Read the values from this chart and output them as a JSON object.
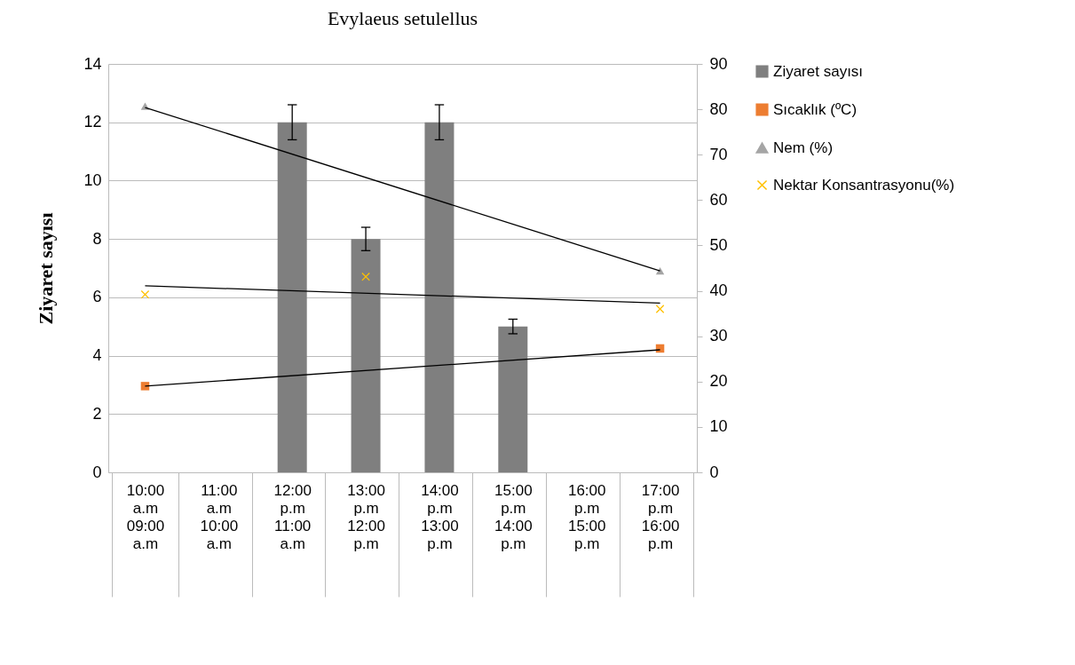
{
  "chart_data": {
    "type": "bar",
    "title": "Evylaeus setulellus",
    "ylabel": "Ziyaret sayısı",
    "categories": [
      "10:00\na.m\n\n09:00\na.m",
      "11:00\na.m\n\n10:00\na.m",
      "12:00\np.m\n\n11:00\na.m",
      "13:00\np.m\n\n12:00\np.m",
      "14:00\np.m\n\n13:00\np.m",
      "15:00\np.m\n\n14:00\np.m",
      "16:00\np.m\n\n15:00\np.m",
      "17:00\np.m\n\n16:00\np.m"
    ],
    "ylim": [
      0,
      14
    ],
    "yticks": [
      0,
      2,
      4,
      6,
      8,
      10,
      12,
      14
    ],
    "y2lim": [
      0,
      90
    ],
    "y2ticks": [
      0,
      10,
      20,
      30,
      40,
      50,
      60,
      70,
      80,
      90
    ],
    "grid": "y",
    "legend": "top right",
    "series": [
      {
        "name": "Ziyaret sayısı",
        "color": "#7f7f7f",
        "values": [
          null,
          null,
          12,
          8,
          12,
          5,
          null,
          null
        ],
        "errors": [
          null,
          null,
          0.6,
          0.4,
          0.6,
          0.25,
          null,
          null
        ]
      },
      {
        "name": "Sıcaklık (ºC)",
        "type": "scatter",
        "axis": "y2",
        "color": "#ed7d31",
        "marker": "square",
        "values": [
          19,
          null,
          null,
          null,
          null,
          null,
          null,
          27.3
        ]
      },
      {
        "name": "Nem (%)",
        "type": "scatter",
        "axis": "y2",
        "color": "#a5a5a5",
        "marker": "triangle",
        "values": [
          80.7,
          null,
          null,
          null,
          null,
          null,
          null,
          44.4
        ]
      },
      {
        "name": "Nektar Konsantrasyonu(%)",
        "type": "scatter",
        "axis": "y2",
        "color": "#ffc000",
        "marker": "cross",
        "values": [
          39.2,
          null,
          null,
          43.1,
          null,
          null,
          null,
          36
        ]
      },
      {
        "type": "line",
        "axis": "y2",
        "color": "#000000",
        "marker": "none",
        "x": [
          "10:00\na.m\n\n09:00\na.m",
          "17:00\np.m\n\n16:00\np.m"
        ],
        "values": [
          19,
          27
        ]
      },
      {
        "type": "line",
        "axis": "y2",
        "color": "#000000",
        "marker": "none",
        "x": [
          "10:00\na.m\n\n09:00\na.m",
          "17:00\np.m\n\n16:00\np.m"
        ],
        "values": [
          80.4,
          44.4
        ]
      },
      {
        "type": "line",
        "axis": "y2",
        "color": "#000000",
        "marker": "none",
        "x": [
          "10:00\na.m\n\n09:00\na.m",
          "17:00\np.m\n\n16:00\np.m"
        ],
        "values": [
          41.1,
          37.3
        ]
      }
    ]
  }
}
